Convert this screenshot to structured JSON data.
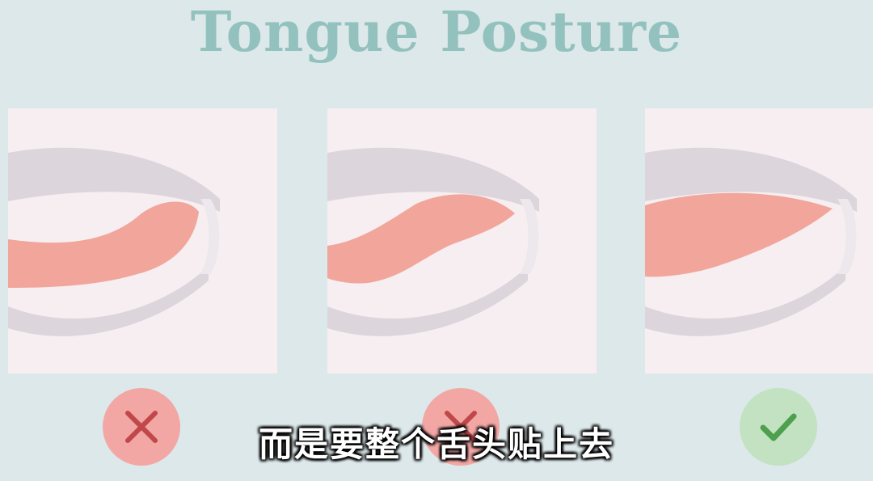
{
  "header": {
    "title": "Tongue Posture"
  },
  "panels": [
    {
      "name": "low-tongue",
      "verdict": "wrong",
      "icon": "cross-icon"
    },
    {
      "name": "partial-tongue",
      "verdict": "wrong",
      "icon": "cross-icon"
    },
    {
      "name": "full-tongue",
      "verdict": "correct",
      "icon": "check-icon"
    }
  ],
  "caption": {
    "text": "而是要整个舌头贴上去"
  },
  "colors": {
    "title": "#93c2be",
    "panel_bg": "#f6eef1",
    "mouth_gray": "#dcd6dc",
    "tongue": "#f2a59b",
    "wrong_badge": "#f2a7a4",
    "wrong_mark": "#c0484a",
    "right_badge": "#c2e2c2",
    "right_mark": "#4ea04e"
  }
}
